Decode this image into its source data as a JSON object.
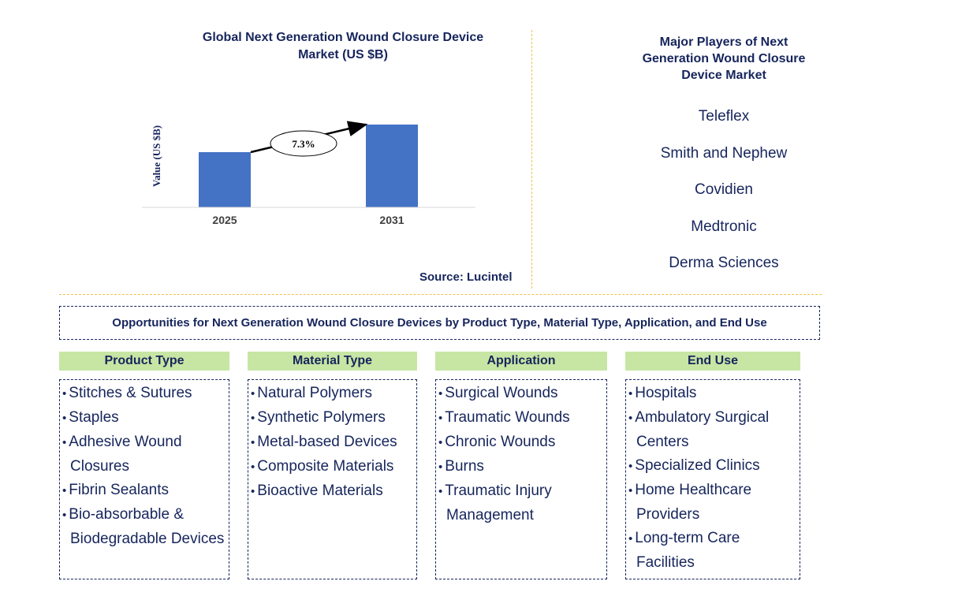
{
  "chart": {
    "title": "Global Next Generation Wound Closure Device Market (US $B)",
    "source": "Source: Lucintel",
    "cagr_label": "7.3%"
  },
  "chart_data": {
    "type": "bar",
    "title": "Global Next Generation Wound Closure Device Market (US $B)",
    "categories": [
      "2025",
      "2031"
    ],
    "values": [
      1.0,
      1.5
    ],
    "ylabel": "Value (US $B)",
    "xlabel": "",
    "ylim": [
      0,
      1.6
    ],
    "annotations": [
      "7.3%"
    ],
    "colors": [
      "#4472c4"
    ],
    "grid": false,
    "legend": "none"
  },
  "players": {
    "title": "Major Players of Next Generation Wound Closure Device Market",
    "items": [
      "Teleflex",
      "Smith and Nephew",
      "Covidien",
      "Medtronic",
      "Derma Sciences"
    ]
  },
  "opportunities": {
    "title": "Opportunities for Next Generation Wound Closure Devices by Product Type, Material Type, Application, and End Use",
    "columns": [
      {
        "header": "Product Type",
        "items": [
          "Stitches & Sutures",
          "Staples",
          "Adhesive Wound Closures",
          "Fibrin Sealants",
          "Bio-absorbable & Biodegradable Devices"
        ]
      },
      {
        "header": "Material Type",
        "items": [
          "Natural Polymers",
          "Synthetic Polymers",
          "Metal-based Devices",
          "Composite Materials",
          "Bioactive Materials"
        ]
      },
      {
        "header": "Application",
        "items": [
          "Surgical Wounds",
          "Traumatic Wounds",
          "Chronic Wounds",
          "Burns",
          "Traumatic Injury Management"
        ]
      },
      {
        "header": "End Use",
        "items": [
          "Hospitals",
          "Ambulatory Surgical Centers",
          "Specialized Clinics",
          "Home Healthcare Providers",
          "Long-term Care Facilities"
        ]
      }
    ]
  },
  "colors": {
    "bar": "#4472c4",
    "navy_text": "#16255c",
    "header_green": "#c7e6a4",
    "divider_gold": "#f0c24b"
  }
}
